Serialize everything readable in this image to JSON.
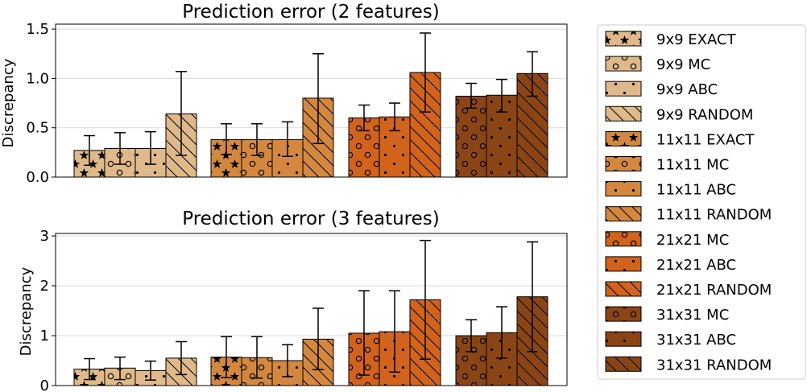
{
  "colors": {
    "9x9": "#e0b98a",
    "11x11": "#d4883f",
    "21x21": "#d2631c",
    "31x31": "#8b4515"
  },
  "legend": {
    "placement": "right, outside axes",
    "entries": [
      {
        "label": "9x9 EXACT",
        "group": "9x9",
        "pattern": "star"
      },
      {
        "label": "9x9 MC",
        "group": "9x9",
        "pattern": "circle"
      },
      {
        "label": "9x9 ABC",
        "group": "9x9",
        "pattern": "dot"
      },
      {
        "label": "9x9 RANDOM",
        "group": "9x9",
        "pattern": "hatch"
      },
      {
        "label": "11x11 EXACT",
        "group": "11x11",
        "pattern": "star"
      },
      {
        "label": "11x11 MC",
        "group": "11x11",
        "pattern": "circle"
      },
      {
        "label": "11x11 ABC",
        "group": "11x11",
        "pattern": "dot"
      },
      {
        "label": "11x11 RANDOM",
        "group": "11x11",
        "pattern": "hatch"
      },
      {
        "label": "21x21 MC",
        "group": "21x21",
        "pattern": "circle"
      },
      {
        "label": "21x21 ABC",
        "group": "21x21",
        "pattern": "dot"
      },
      {
        "label": "21x21 RANDOM",
        "group": "21x21",
        "pattern": "hatch"
      },
      {
        "label": "31x31 MC",
        "group": "31x31",
        "pattern": "circle"
      },
      {
        "label": "31x31 ABC",
        "group": "31x31",
        "pattern": "dot"
      },
      {
        "label": "31x31 RANDOM",
        "group": "31x31",
        "pattern": "hatch"
      }
    ]
  },
  "chart_data": [
    {
      "type": "bar",
      "title": "Prediction error (2 features)",
      "ylabel": "Discrepancy",
      "xlabel": "",
      "ylim": [
        0,
        1.55
      ],
      "yticks": [
        "0.0",
        "0.5",
        "1.0",
        "1.5"
      ],
      "ytick_values": [
        0,
        0.5,
        1.0,
        1.5
      ],
      "grid": "horizontal",
      "groups": [
        {
          "name": "9x9",
          "bars": [
            {
              "pattern": "star",
              "value": 0.27,
              "err_low": 0.12,
              "err_high": 0.42
            },
            {
              "pattern": "circle",
              "value": 0.29,
              "err_low": 0.13,
              "err_high": 0.45
            },
            {
              "pattern": "dot",
              "value": 0.29,
              "err_low": 0.13,
              "err_high": 0.46
            },
            {
              "pattern": "hatch",
              "value": 0.64,
              "err_low": 0.22,
              "err_high": 1.07
            }
          ]
        },
        {
          "name": "11x11",
          "bars": [
            {
              "pattern": "star",
              "value": 0.38,
              "err_low": 0.23,
              "err_high": 0.54
            },
            {
              "pattern": "circle",
              "value": 0.38,
              "err_low": 0.22,
              "err_high": 0.54
            },
            {
              "pattern": "dot",
              "value": 0.38,
              "err_low": 0.21,
              "err_high": 0.56
            },
            {
              "pattern": "hatch",
              "value": 0.8,
              "err_low": 0.34,
              "err_high": 1.25
            }
          ]
        },
        {
          "name": "21x21",
          "bars": [
            {
              "pattern": "circle",
              "value": 0.6,
              "err_low": 0.47,
              "err_high": 0.73
            },
            {
              "pattern": "dot",
              "value": 0.61,
              "err_low": 0.47,
              "err_high": 0.75
            },
            {
              "pattern": "hatch",
              "value": 1.06,
              "err_low": 0.66,
              "err_high": 1.46
            }
          ]
        },
        {
          "name": "31x31",
          "bars": [
            {
              "pattern": "circle",
              "value": 0.82,
              "err_low": 0.7,
              "err_high": 0.95
            },
            {
              "pattern": "dot",
              "value": 0.83,
              "err_low": 0.66,
              "err_high": 0.99
            },
            {
              "pattern": "hatch",
              "value": 1.05,
              "err_low": 0.82,
              "err_high": 1.27
            }
          ]
        }
      ]
    },
    {
      "type": "bar",
      "title": "Prediction error (3 features)",
      "ylabel": "Discrepancy",
      "xlabel": "",
      "ylim": [
        0,
        3.05
      ],
      "yticks": [
        "0",
        "1",
        "2",
        "3"
      ],
      "ytick_values": [
        0,
        1,
        2,
        3
      ],
      "grid": "horizontal",
      "groups": [
        {
          "name": "9x9",
          "bars": [
            {
              "pattern": "star",
              "value": 0.33,
              "err_low": 0.12,
              "err_high": 0.54
            },
            {
              "pattern": "circle",
              "value": 0.35,
              "err_low": 0.12,
              "err_high": 0.57
            },
            {
              "pattern": "dot",
              "value": 0.3,
              "err_low": 0.11,
              "err_high": 0.49
            },
            {
              "pattern": "hatch",
              "value": 0.55,
              "err_low": 0.22,
              "err_high": 0.88
            }
          ]
        },
        {
          "name": "11x11",
          "bars": [
            {
              "pattern": "star",
              "value": 0.57,
              "err_low": 0.16,
              "err_high": 0.98
            },
            {
              "pattern": "circle",
              "value": 0.56,
              "err_low": 0.15,
              "err_high": 0.98
            },
            {
              "pattern": "dot",
              "value": 0.5,
              "err_low": 0.18,
              "err_high": 0.82
            },
            {
              "pattern": "hatch",
              "value": 0.93,
              "err_low": 0.32,
              "err_high": 1.55
            }
          ]
        },
        {
          "name": "21x21",
          "bars": [
            {
              "pattern": "circle",
              "value": 1.05,
              "err_low": 0.21,
              "err_high": 1.9
            },
            {
              "pattern": "dot",
              "value": 1.08,
              "err_low": 0.27,
              "err_high": 1.9
            },
            {
              "pattern": "hatch",
              "value": 1.72,
              "err_low": 0.53,
              "err_high": 2.91
            }
          ]
        },
        {
          "name": "31x31",
          "bars": [
            {
              "pattern": "circle",
              "value": 1.0,
              "err_low": 0.68,
              "err_high": 1.32
            },
            {
              "pattern": "dot",
              "value": 1.06,
              "err_low": 0.55,
              "err_high": 1.58
            },
            {
              "pattern": "hatch",
              "value": 1.78,
              "err_low": 0.68,
              "err_high": 2.88
            }
          ]
        }
      ]
    }
  ]
}
